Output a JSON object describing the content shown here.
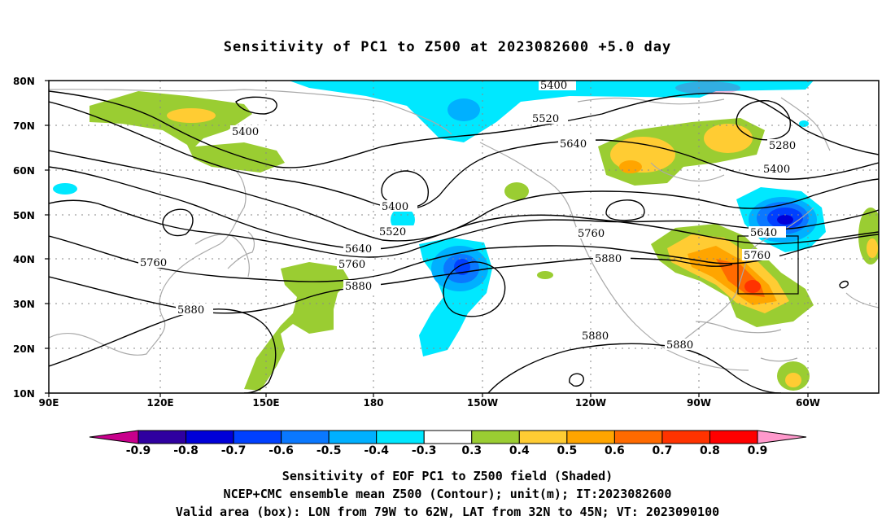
{
  "title": "Sensitivity of PC1 to Z500 at 2023082600 +5.0 day",
  "lat_ticks": [
    "80N",
    "70N",
    "60N",
    "50N",
    "40N",
    "30N",
    "20N",
    "10N"
  ],
  "lon_ticks": [
    "90E",
    "120E",
    "150E",
    "180",
    "150W",
    "120W",
    "90W",
    "60W"
  ],
  "contour_labels": [
    "5400",
    "5520",
    "5640",
    "5280",
    "5400",
    "5400",
    "5520",
    "5640",
    "5760",
    "5880",
    "5760",
    "5640",
    "5760",
    "5760",
    "5880",
    "5880",
    "5880",
    "5880",
    "5400"
  ],
  "colorbar": {
    "labels": [
      "-0.9",
      "-0.8",
      "-0.7",
      "-0.6",
      "-0.5",
      "-0.4",
      "-0.3",
      "0.3",
      "0.4",
      "0.5",
      "0.6",
      "0.7",
      "0.8",
      "0.9"
    ],
    "colors": [
      "#2f00a0",
      "#0000d8",
      "#0040ff",
      "#0a78ff",
      "#00b0ff",
      "#00e8ff",
      "#ffffff",
      "#9acd32",
      "#ffcc33",
      "#ffa500",
      "#ff6a00",
      "#ff3300",
      "#ff0000"
    ],
    "low_cap_color": "#c8008c",
    "high_cap_color": "#ff99cc"
  },
  "caption": {
    "line1": "Sensitivity of EOF PC1 to Z500 field (Shaded)",
    "line2": "NCEP+CMC ensemble mean Z500 (Contour); unit(m); IT:2023082600",
    "line3": "Valid area (box): LON from 79W to 62W, LAT from 32N to 45N; VT: 2023090100"
  }
}
